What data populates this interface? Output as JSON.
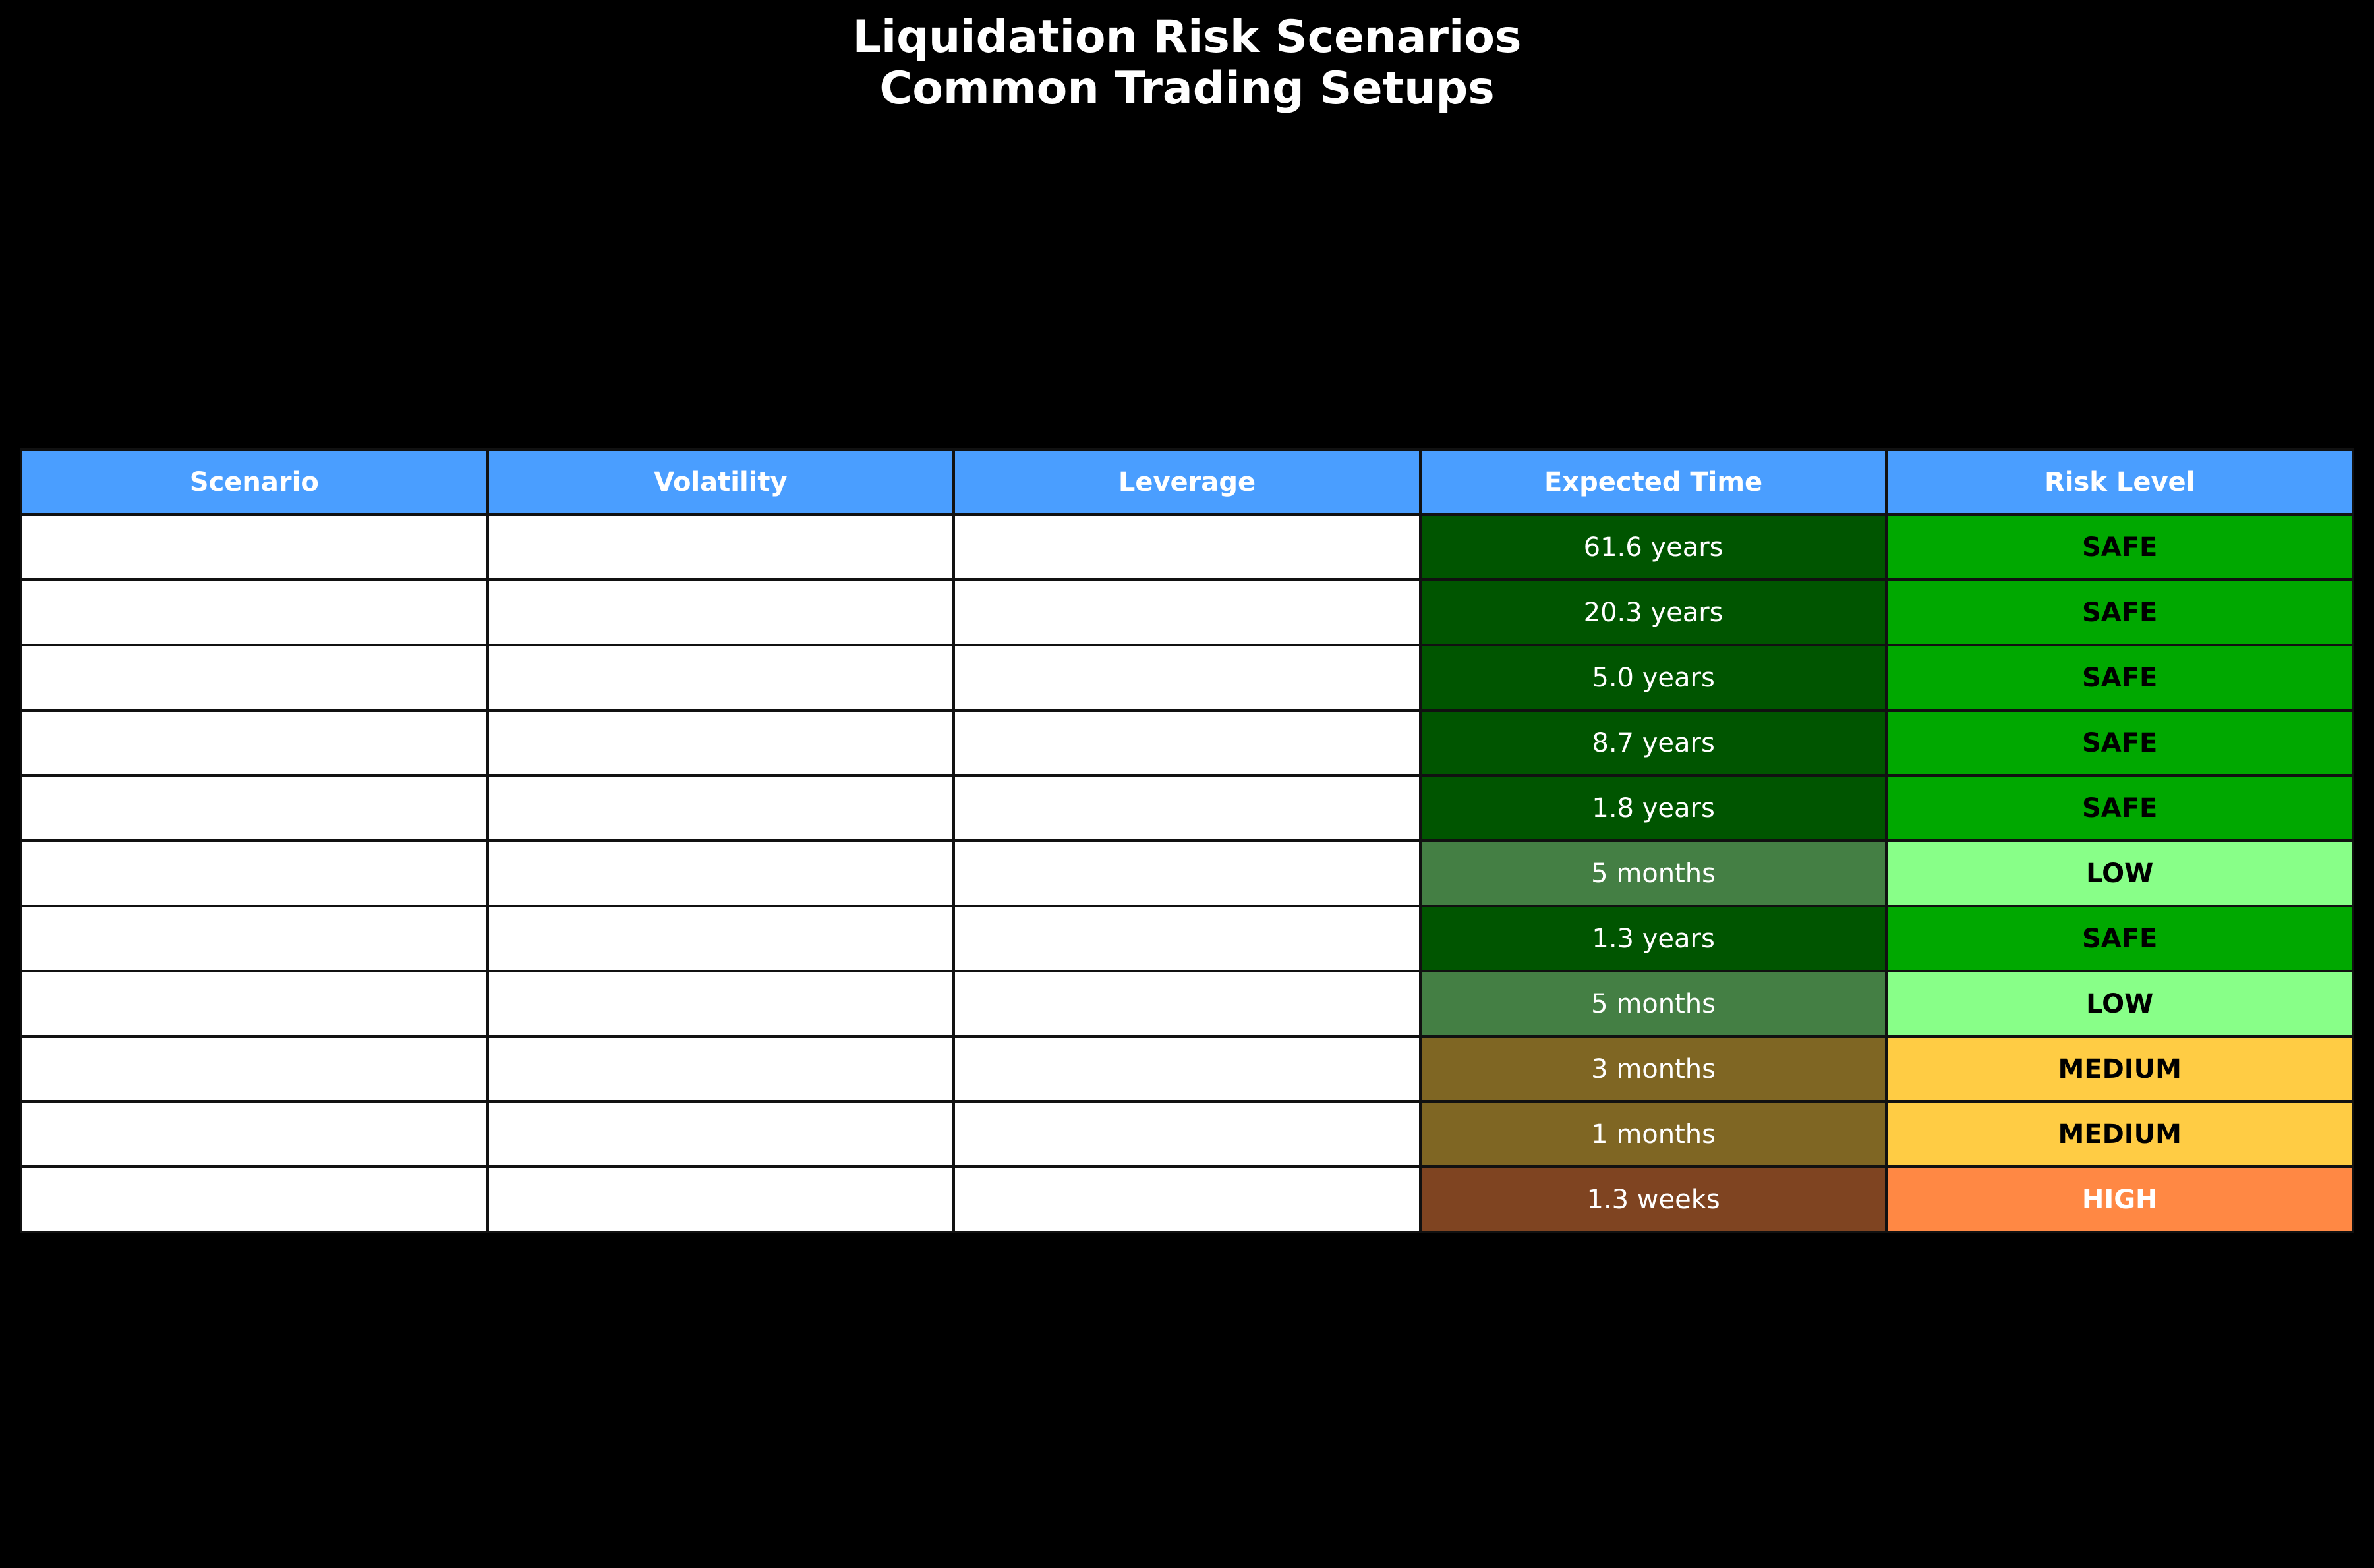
{
  "chart_data": {
    "type": "table",
    "title_lines": [
      "Liquidation Risk Scenarios",
      "Common Trading Setups"
    ],
    "columns": [
      "Scenario",
      "Volatility",
      "Leverage",
      "Expected Time",
      "Risk Level"
    ],
    "header_color": "#4a9eff",
    "rows": [
      {
        "scenario": "",
        "volatility": "",
        "leverage": "",
        "expected_time": "61.6 years",
        "risk_level": "SAFE"
      },
      {
        "scenario": "",
        "volatility": "",
        "leverage": "",
        "expected_time": "20.3 years",
        "risk_level": "SAFE"
      },
      {
        "scenario": "",
        "volatility": "",
        "leverage": "",
        "expected_time": "5.0 years",
        "risk_level": "SAFE"
      },
      {
        "scenario": "",
        "volatility": "",
        "leverage": "",
        "expected_time": "8.7 years",
        "risk_level": "SAFE"
      },
      {
        "scenario": "",
        "volatility": "",
        "leverage": "",
        "expected_time": "1.8 years",
        "risk_level": "SAFE"
      },
      {
        "scenario": "",
        "volatility": "",
        "leverage": "",
        "expected_time": "5 months",
        "risk_level": "LOW"
      },
      {
        "scenario": "",
        "volatility": "",
        "leverage": "",
        "expected_time": "1.3 years",
        "risk_level": "SAFE"
      },
      {
        "scenario": "",
        "volatility": "",
        "leverage": "",
        "expected_time": "5 months",
        "risk_level": "LOW"
      },
      {
        "scenario": "",
        "volatility": "",
        "leverage": "",
        "expected_time": "3 months",
        "risk_level": "MEDIUM"
      },
      {
        "scenario": "",
        "volatility": "",
        "leverage": "",
        "expected_time": "1 months",
        "risk_level": "MEDIUM"
      },
      {
        "scenario": "",
        "volatility": "",
        "leverage": "",
        "expected_time": "1.3 weeks",
        "risk_level": "HIGH"
      }
    ],
    "risk_colors": {
      "SAFE": {
        "time_bg": "#005500",
        "level_bg": "#00a800",
        "level_text": "#000000"
      },
      "LOW": {
        "time_bg": "#447f44",
        "level_bg": "#88ff88",
        "level_text": "#000000"
      },
      "MEDIUM": {
        "time_bg": "#7f6623",
        "level_bg": "#ffcc44",
        "level_text": "#000000"
      },
      "HIGH": {
        "time_bg": "#7f4421",
        "level_bg": "#ff8844",
        "level_text": "#ffffff"
      }
    }
  }
}
